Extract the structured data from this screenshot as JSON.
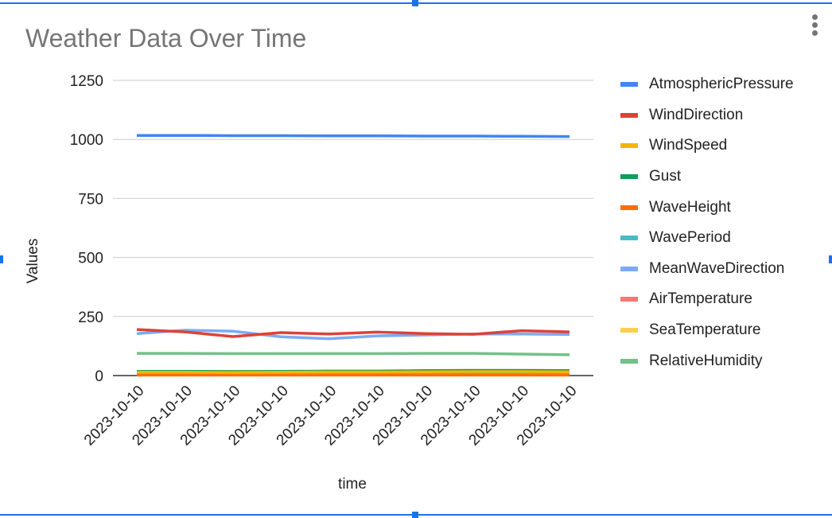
{
  "chart_data": {
    "type": "line",
    "title": "Weather Data Over Time",
    "xlabel": "time",
    "ylabel": "Values",
    "ylim": [
      0,
      1250
    ],
    "yticks": [
      "0",
      "250",
      "500",
      "750",
      "1000",
      "1250"
    ],
    "ytick_values": [
      0,
      250,
      500,
      750,
      1000,
      1250
    ],
    "categories": [
      "2023-10-10",
      "2023-10-10",
      "2023-10-10",
      "2023-10-10",
      "2023-10-10",
      "2023-10-10",
      "2023-10-10",
      "2023-10-10",
      "2023-10-10",
      "2023-10-10"
    ],
    "grid": true,
    "legend_position": "right",
    "series": [
      {
        "name": "AtmosphericPressure",
        "color": "#4285f4",
        "values": [
          1017,
          1017,
          1016,
          1016,
          1015,
          1015,
          1014,
          1014,
          1013,
          1012
        ]
      },
      {
        "name": "WindDirection",
        "color": "#db4437",
        "values": [
          195,
          185,
          165,
          182,
          176,
          184,
          178,
          175,
          190,
          185
        ]
      },
      {
        "name": "WindSpeed",
        "color": "#f4b400",
        "values": [
          14,
          14,
          13,
          14,
          15,
          15,
          16,
          17,
          17,
          16
        ]
      },
      {
        "name": "Gust",
        "color": "#0f9d58",
        "values": [
          18,
          18,
          17,
          18,
          19,
          19,
          21,
          22,
          22,
          21
        ]
      },
      {
        "name": "WaveHeight",
        "color": "#ff6d01",
        "values": [
          2,
          2,
          2,
          2,
          2,
          2,
          2,
          2,
          2,
          2
        ]
      },
      {
        "name": "WavePeriod",
        "color": "#46bdc6",
        "values": [
          6,
          6,
          6,
          6,
          6,
          6,
          6,
          6,
          6,
          6
        ]
      },
      {
        "name": "MeanWaveDirection",
        "color": "#7baaf7",
        "values": [
          178,
          192,
          188,
          164,
          156,
          168,
          172,
          176,
          176,
          174
        ]
      },
      {
        "name": "AirTemperature",
        "color": "#f07b72",
        "values": [
          16,
          16,
          16,
          16,
          16,
          16,
          16,
          16,
          16,
          16
        ]
      },
      {
        "name": "SeaTemperature",
        "color": "#fcd04f",
        "values": [
          18,
          18,
          18,
          18,
          18,
          18,
          18,
          18,
          18,
          18
        ]
      },
      {
        "name": "RelativeHumidity",
        "color": "#71c287",
        "values": [
          94,
          94,
          93,
          93,
          93,
          93,
          94,
          94,
          91,
          88
        ]
      }
    ]
  },
  "ui": {
    "menu_icon": "more-vert-icon"
  }
}
